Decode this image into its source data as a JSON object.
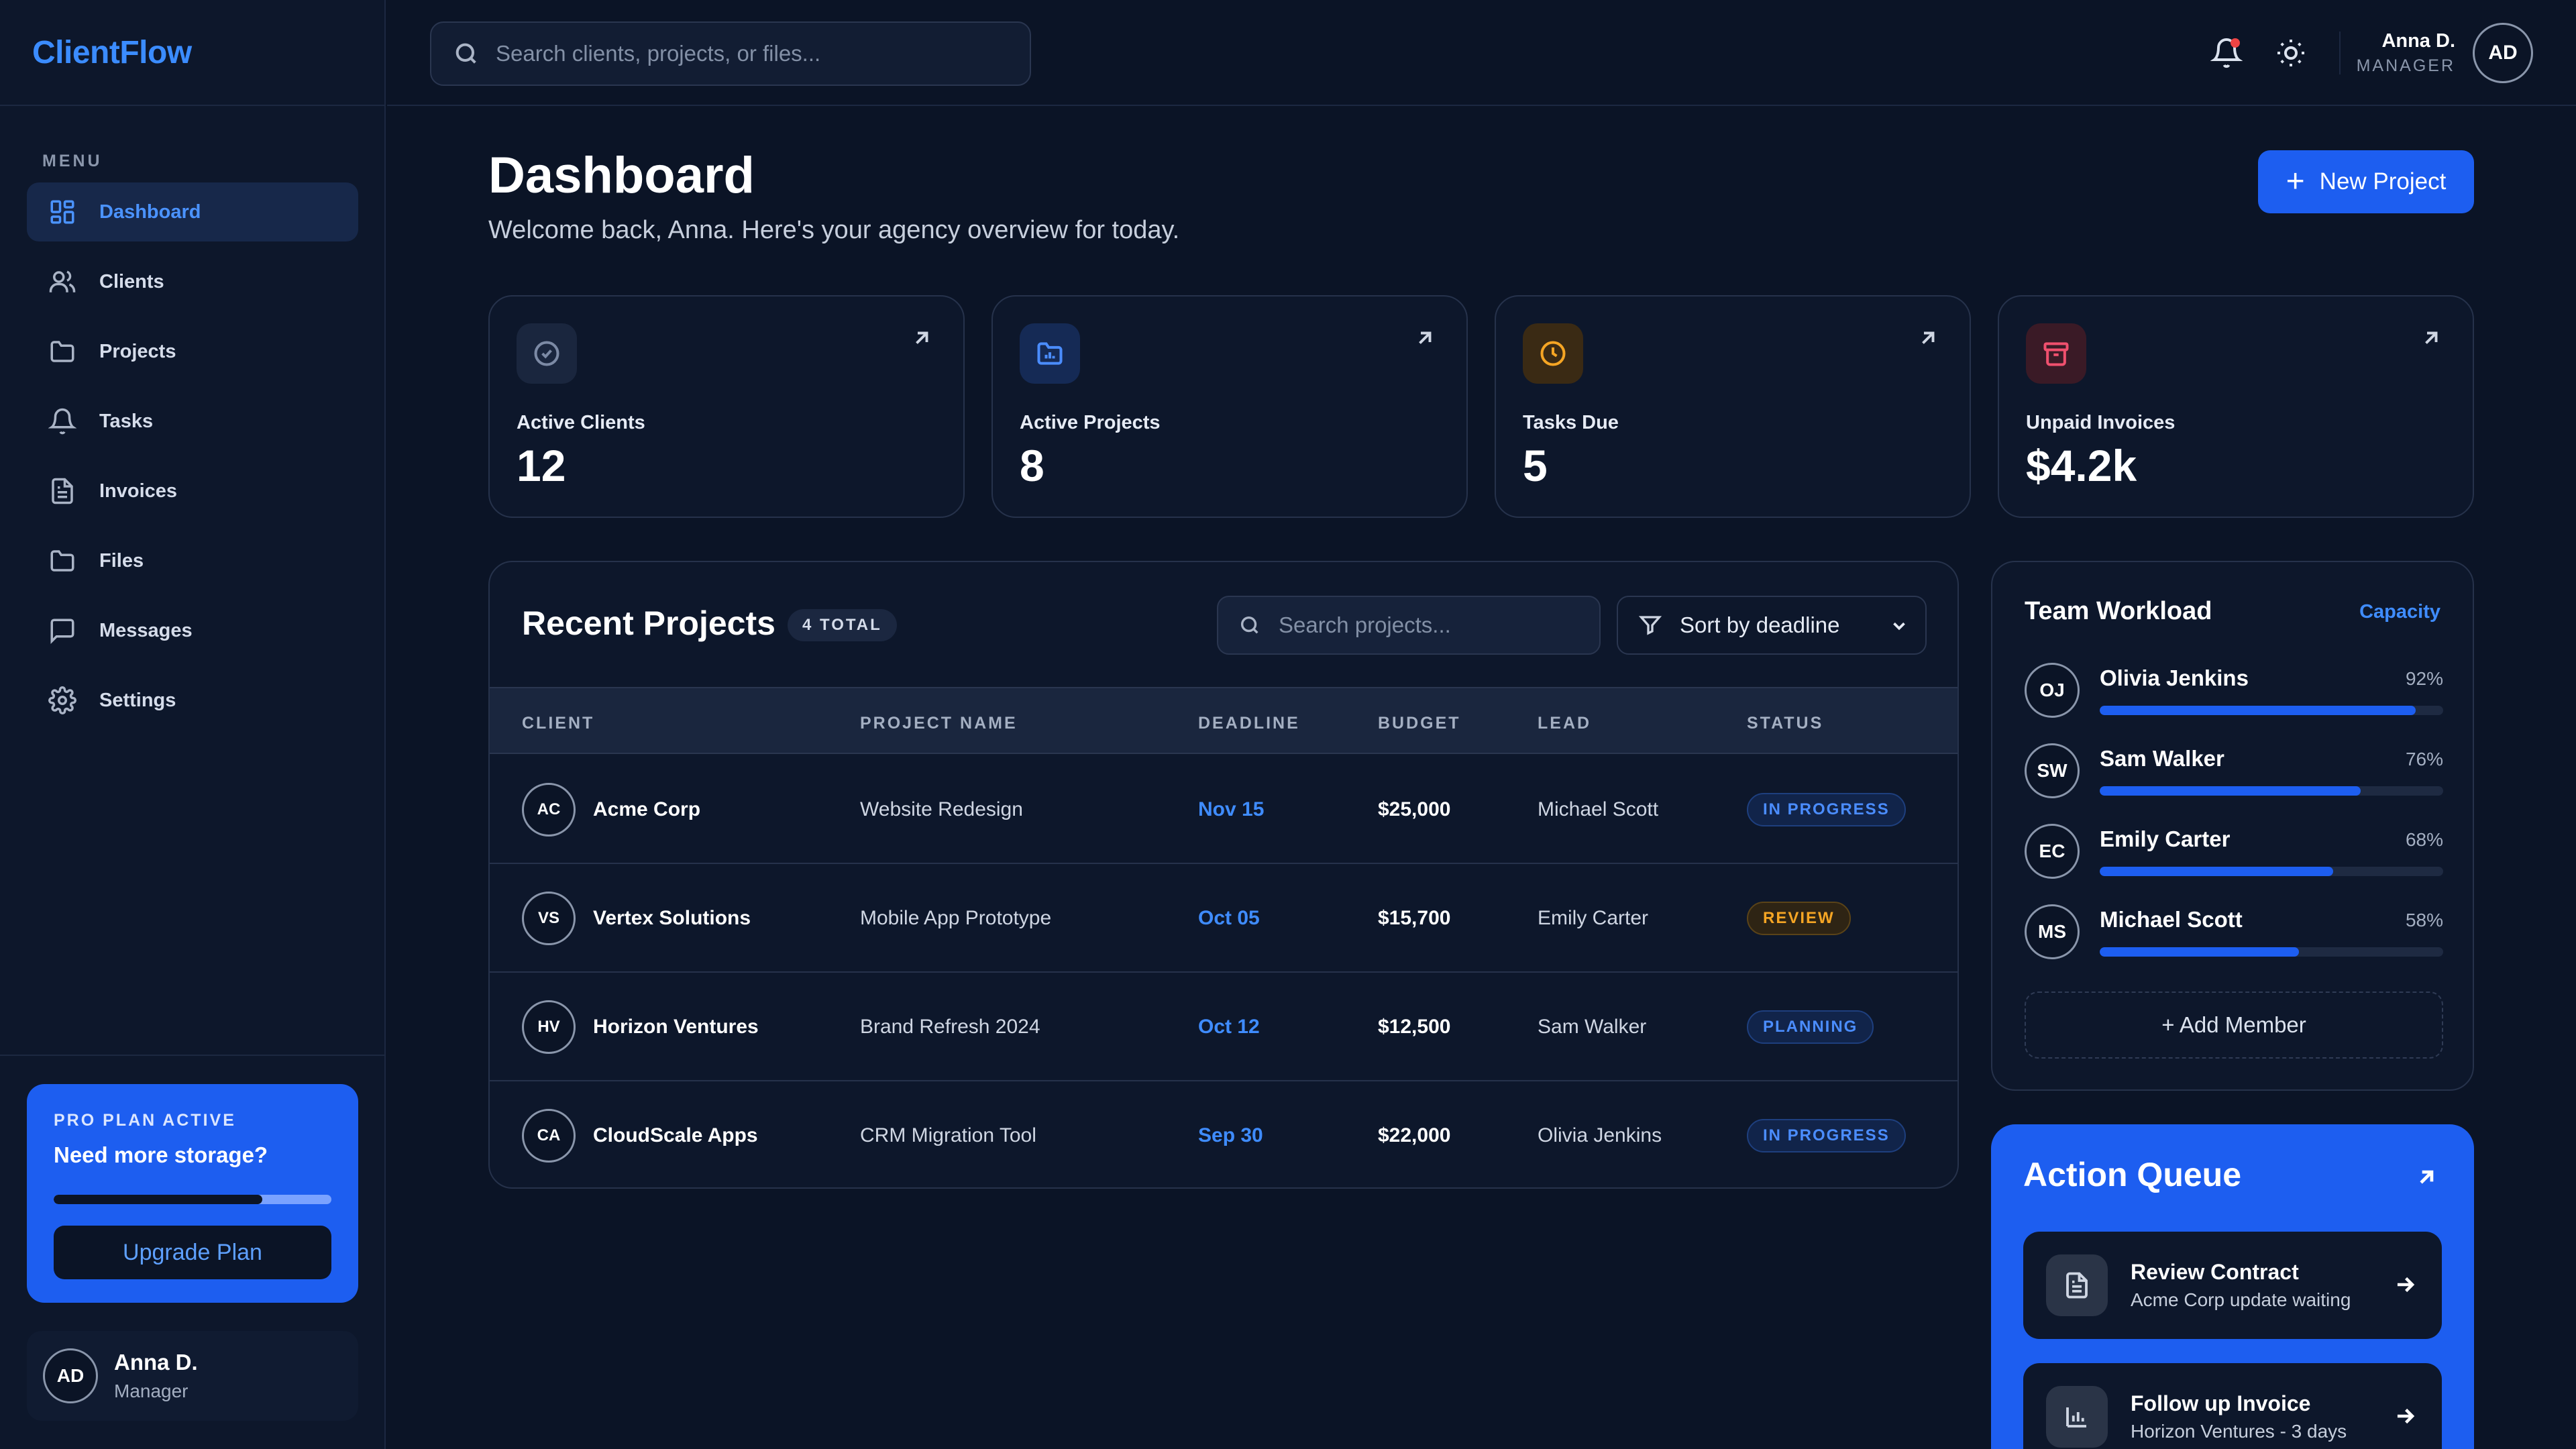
{
  "app": {
    "name": "ClientFlow"
  },
  "sidebar": {
    "menu_label": "MENU",
    "items": [
      {
        "label": "Dashboard",
        "icon": "grid-icon",
        "active": true
      },
      {
        "label": "Clients",
        "icon": "users-icon",
        "active": false
      },
      {
        "label": "Projects",
        "icon": "folder-icon",
        "active": false
      },
      {
        "label": "Tasks",
        "icon": "bell-icon",
        "active": false
      },
      {
        "label": "Invoices",
        "icon": "document-icon",
        "active": false
      },
      {
        "label": "Files",
        "icon": "folder-icon",
        "active": false
      },
      {
        "label": "Messages",
        "icon": "message-icon",
        "active": false
      },
      {
        "label": "Settings",
        "icon": "gear-icon",
        "active": false
      }
    ],
    "plan": {
      "title": "PRO PLAN ACTIVE",
      "subtitle": "Need more storage?",
      "storage_used_fraction": 0.75,
      "button": "Upgrade Plan"
    },
    "user": {
      "initials": "AD",
      "name": "Anna D.",
      "role": "Manager"
    }
  },
  "topbar": {
    "search_placeholder": "Search clients, projects, or files...",
    "has_notification": true,
    "user": {
      "name": "Anna D.",
      "role": "MANAGER",
      "initials": "AD"
    }
  },
  "header": {
    "title": "Dashboard",
    "subtitle": "Welcome back, Anna. Here's your agency overview for today.",
    "new_button": "New Project"
  },
  "stats": [
    {
      "label": "Active Clients",
      "value": "12",
      "icon": "check-circle-icon",
      "color": "#7c8aa5",
      "bg": "#1a263e"
    },
    {
      "label": "Active Projects",
      "value": "8",
      "icon": "folder-chart-icon",
      "color": "#4b8dff",
      "bg": "#152a55"
    },
    {
      "label": "Tasks Due",
      "value": "5",
      "icon": "clock-icon",
      "color": "#f5a524",
      "bg": "#3a2a14"
    },
    {
      "label": "Unpaid Invoices",
      "value": "$4.2k",
      "icon": "archive-icon",
      "color": "#f0506e",
      "bg": "#3a1a26"
    }
  ],
  "projects": {
    "title": "Recent Projects",
    "total_badge": "4 TOTAL",
    "search_placeholder": "Search projects...",
    "sort_label": "Sort by deadline",
    "columns": [
      "CLIENT",
      "PROJECT NAME",
      "DEADLINE",
      "BUDGET",
      "LEAD",
      "STATUS"
    ],
    "rows": [
      {
        "initials": "AC",
        "client": "Acme Corp",
        "project": "Website Redesign",
        "deadline": "Nov 15",
        "budget": "$25,000",
        "lead": "Michael Scott",
        "status": "IN PROGRESS",
        "status_color": "#4b8dff",
        "status_bg": "#11244a",
        "status_border": "#1e3f7e"
      },
      {
        "initials": "VS",
        "client": "Vertex Solutions",
        "project": "Mobile App Prototype",
        "deadline": "Oct 05",
        "budget": "$15,700",
        "lead": "Emily Carter",
        "status": "REVIEW",
        "status_color": "#f5a524",
        "status_bg": "#2e2414",
        "status_border": "#5a4318"
      },
      {
        "initials": "HV",
        "client": "Horizon Ventures",
        "project": "Brand Refresh 2024",
        "deadline": "Oct 12",
        "budget": "$12,500",
        "lead": "Sam Walker",
        "status": "PLANNING",
        "status_color": "#4b8dff",
        "status_bg": "#11244a",
        "status_border": "#1e3f7e"
      },
      {
        "initials": "CA",
        "client": "CloudScale Apps",
        "project": "CRM Migration Tool",
        "deadline": "Sep 30",
        "budget": "$22,000",
        "lead": "Olivia Jenkins",
        "status": "IN PROGRESS",
        "status_color": "#4b8dff",
        "status_bg": "#11244a",
        "status_border": "#1e3f7e"
      }
    ]
  },
  "team": {
    "title": "Team Workload",
    "link": "Capacity",
    "members": [
      {
        "initials": "OJ",
        "name": "Olivia Jenkins",
        "pct_label": "92%",
        "pct": 92
      },
      {
        "initials": "SW",
        "name": "Sam Walker",
        "pct_label": "76%",
        "pct": 76
      },
      {
        "initials": "EC",
        "name": "Emily Carter",
        "pct_label": "68%",
        "pct": 68
      },
      {
        "initials": "MS",
        "name": "Michael Scott",
        "pct_label": "58%",
        "pct": 58
      }
    ],
    "add_button": "+ Add Member"
  },
  "queue": {
    "title": "Action Queue",
    "items": [
      {
        "title": "Review Contract",
        "subtitle": "Acme Corp update waiting",
        "icon": "document-icon"
      },
      {
        "title": "Follow up Invoice",
        "subtitle": "Horizon Ventures - 3 days",
        "icon": "bar-chart-icon"
      }
    ]
  }
}
